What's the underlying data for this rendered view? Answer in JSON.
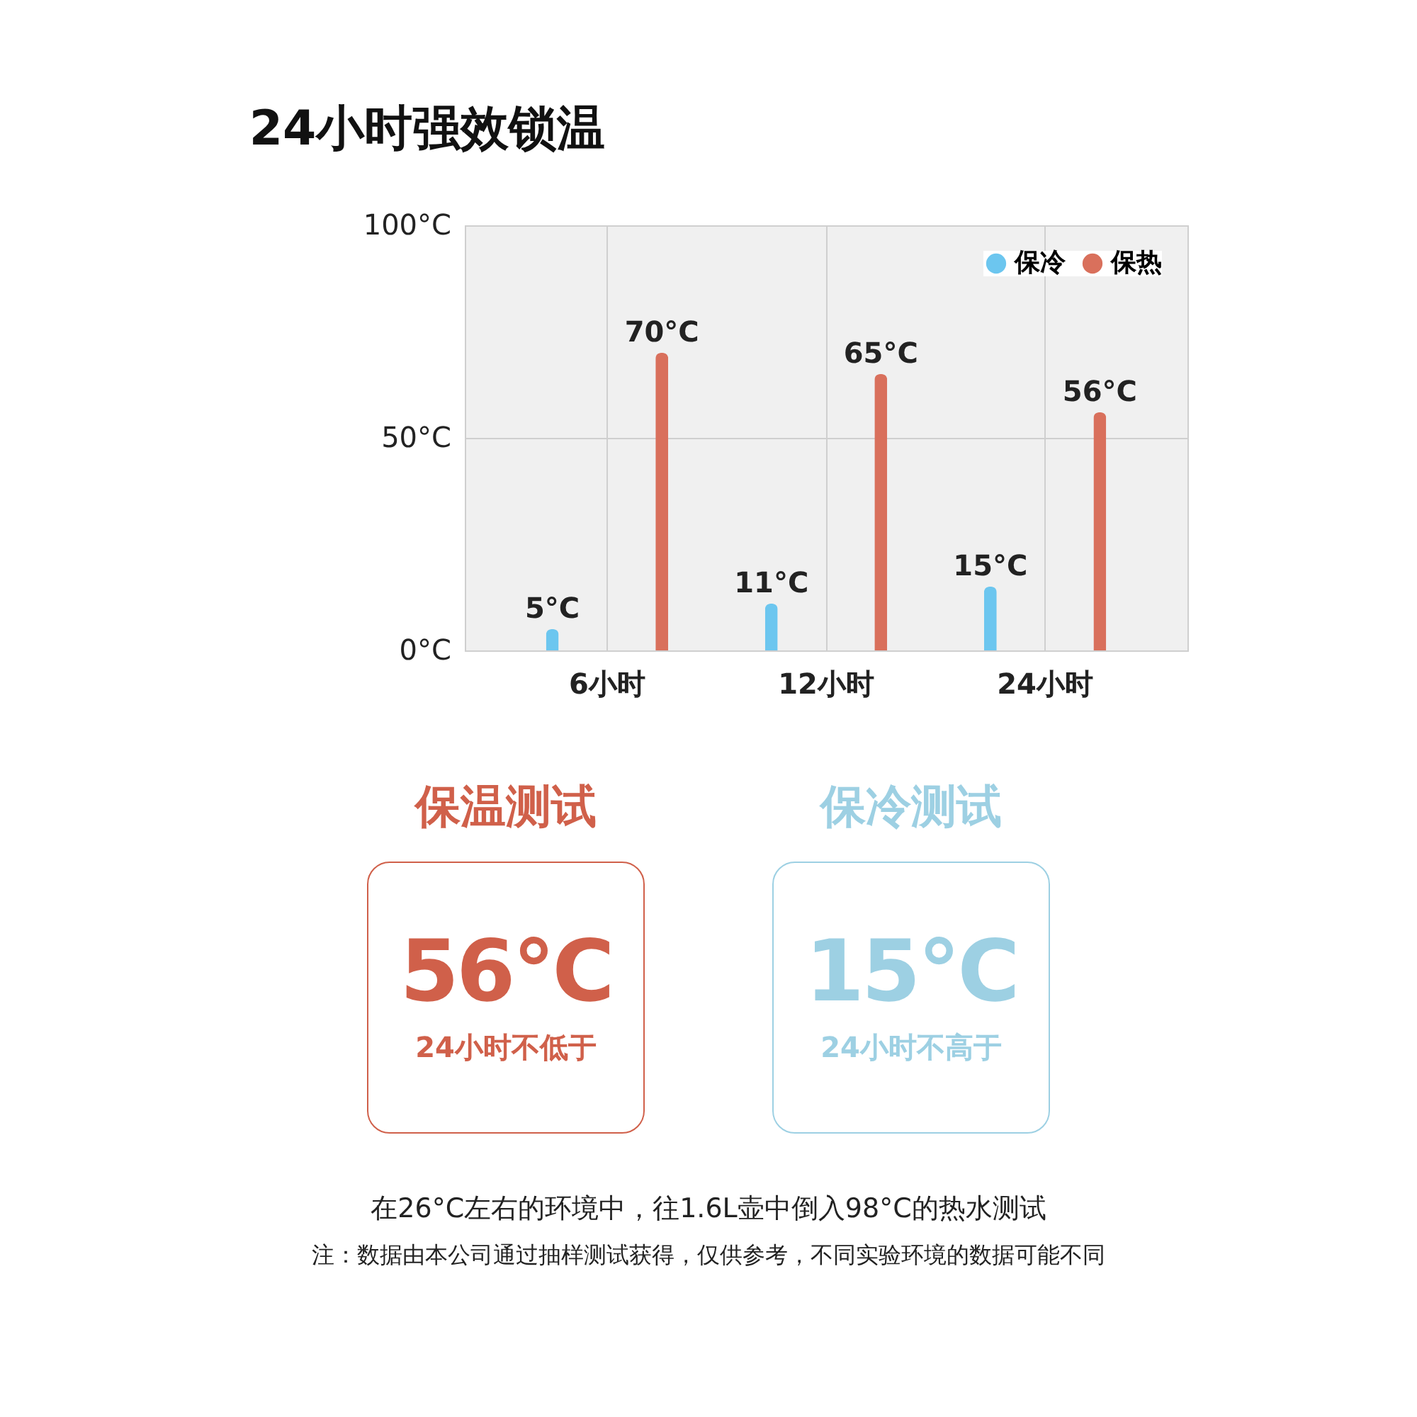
{
  "chart_data": [
    {
      "type": "bar",
      "title": "24小时强效锁温",
      "categories": [
        "6小时",
        "12小时",
        "24小时"
      ],
      "series": [
        {
          "name": "保冷",
          "color": "#6cc6ef",
          "values": [
            5,
            11,
            15
          ],
          "value_labels": [
            "5°C",
            "11°C",
            "15°C"
          ]
        },
        {
          "name": "保热",
          "color": "#d9705c",
          "values": [
            70,
            65,
            56
          ],
          "value_labels": [
            "70°C",
            "65°C",
            "56°C"
          ]
        }
      ],
      "ylim": [
        0,
        100
      ],
      "yticks": [
        {
          "value": 0,
          "label": "0°C"
        },
        {
          "value": 50,
          "label": "50°C"
        },
        {
          "value": 100,
          "label": "100°C"
        }
      ],
      "grid": true,
      "legend": "top right",
      "annotations": [
        "在26°C左右的环境中，往1.6L壶中倒入98°C的热水测试",
        "注：数据由本公司通过抽样测试获得，仅供参考，不同实验环境的数据可能不同"
      ]
    },
    {
      "type": "other",
      "title": "保温测试",
      "color": "#d0604a",
      "annotations": [
        "56°C",
        "24小时不低于"
      ]
    },
    {
      "type": "other",
      "title": "保冷测试",
      "color": "#9dd0e3",
      "annotations": [
        "15°C",
        "24小时不高于"
      ]
    }
  ]
}
